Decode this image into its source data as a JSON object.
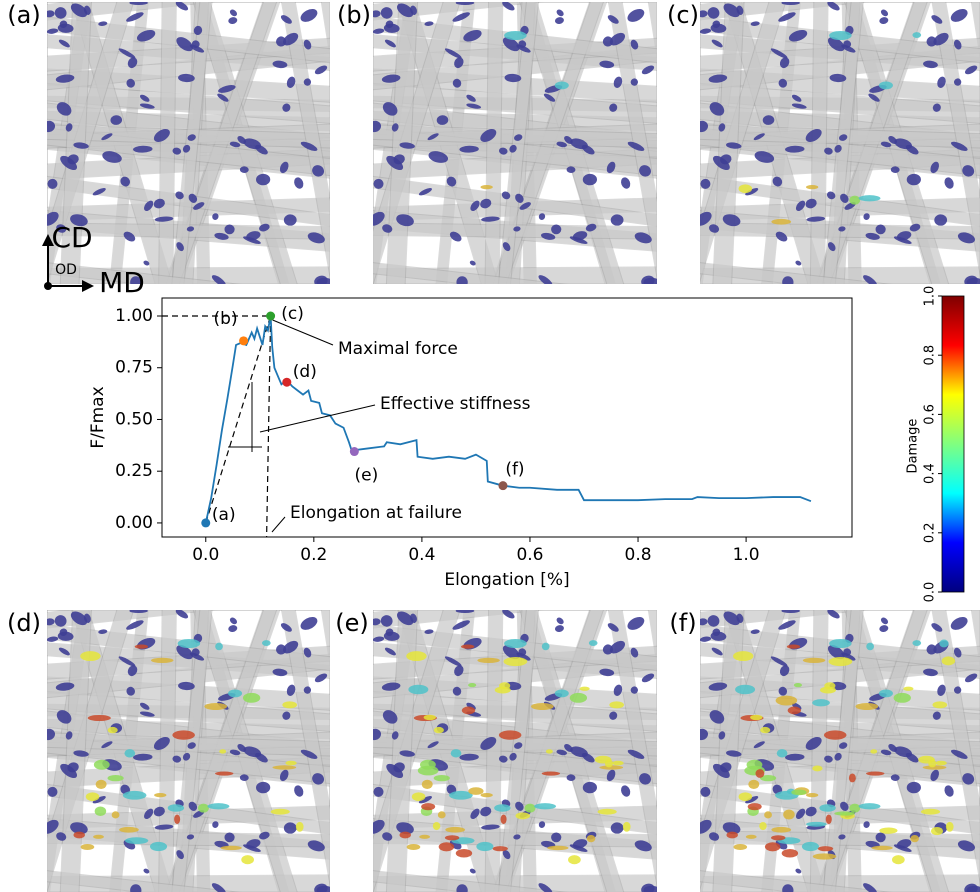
{
  "panels": [
    {
      "label": "(a)"
    },
    {
      "label": "(b)"
    },
    {
      "label": "(c)"
    },
    {
      "label": "(d)"
    },
    {
      "label": "(e)"
    },
    {
      "label": "(f)"
    }
  ],
  "axes_indicator": {
    "vertical": "CD",
    "out_of_plane": "OD",
    "horizontal": "MD"
  },
  "chart_data": {
    "type": "line",
    "xlabel": "Elongation [%]",
    "ylabel": "F/Fmax",
    "xlim": [
      -0.081,
      1.196
    ],
    "ylim": [
      -0.068,
      1.087
    ],
    "xticks": [
      {
        "value": 0,
        "label": "0.0"
      },
      {
        "value": 0.2,
        "label": "0.2"
      },
      {
        "value": 0.4,
        "label": "0.4"
      },
      {
        "value": 0.6,
        "label": "0.6"
      },
      {
        "value": 0.8,
        "label": "0.8"
      },
      {
        "value": 1.0,
        "label": "1.0"
      }
    ],
    "yticks": [
      {
        "value": 0,
        "label": "0.00"
      },
      {
        "value": 0.25,
        "label": "0.25"
      },
      {
        "value": 0.5,
        "label": "0.50"
      },
      {
        "value": 0.75,
        "label": "0.75"
      },
      {
        "value": 1.0,
        "label": "1.00"
      }
    ],
    "x": [
      0,
      0.01,
      0.02,
      0.03,
      0.04,
      0.05,
      0.056,
      0.065,
      0.075,
      0.085,
      0.09,
      0.095,
      0.1,
      0.105,
      0.11,
      0.115,
      0.12,
      0.123,
      0.127,
      0.135,
      0.14,
      0.15,
      0.16,
      0.17,
      0.18,
      0.19,
      0.195,
      0.21,
      0.215,
      0.23,
      0.24,
      0.255,
      0.265,
      0.27,
      0.3,
      0.33,
      0.335,
      0.36,
      0.39,
      0.392,
      0.42,
      0.45,
      0.48,
      0.5,
      0.52,
      0.522,
      0.55,
      0.58,
      0.6,
      0.65,
      0.69,
      0.7,
      0.75,
      0.8,
      0.85,
      0.9,
      0.91,
      0.95,
      1.0,
      1.05,
      1.1,
      1.12
    ],
    "series": [
      {
        "name": "F/Fmax",
        "color": "#1f77b4",
        "values": [
          0,
          0.12,
          0.28,
          0.45,
          0.6,
          0.76,
          0.86,
          0.87,
          0.86,
          0.92,
          0.89,
          0.94,
          0.9,
          0.86,
          0.95,
          0.93,
          1.0,
          0.85,
          0.75,
          0.7,
          0.67,
          0.69,
          0.66,
          0.64,
          0.62,
          0.64,
          0.59,
          0.58,
          0.53,
          0.52,
          0.48,
          0.46,
          0.39,
          0.35,
          0.36,
          0.37,
          0.39,
          0.38,
          0.4,
          0.32,
          0.31,
          0.32,
          0.31,
          0.33,
          0.3,
          0.2,
          0.18,
          0.17,
          0.17,
          0.16,
          0.16,
          0.11,
          0.11,
          0.11,
          0.115,
          0.115,
          0.125,
          0.12,
          0.12,
          0.125,
          0.125,
          0.105
        ]
      }
    ],
    "markers": {
      "labels": [
        "(a)",
        "(b)",
        "(c)",
        "(d)",
        "(e)",
        "(f)"
      ],
      "x": [
        0,
        0.07,
        0.12,
        0.15,
        0.275,
        0.55
      ],
      "values": [
        0,
        0.88,
        1.0,
        0.68,
        0.345,
        0.18
      ],
      "colors": [
        "#1f77b4",
        "#ff7f0e",
        "#2ca02c",
        "#d62728",
        "#9467bd",
        "#8c564b"
      ]
    },
    "annotations": [
      "Maximal force",
      "Effective stiffness",
      "Elongation at failure"
    ],
    "colorbar": {
      "label": "Damage",
      "lim": [
        0,
        1
      ],
      "ticks": [
        {
          "value": 0,
          "label": "0.0"
        },
        {
          "value": 0.2,
          "label": "0.2"
        },
        {
          "value": 0.4,
          "label": "0.4"
        },
        {
          "value": 0.6,
          "label": "0.6"
        },
        {
          "value": 0.8,
          "label": "0.8"
        },
        {
          "value": 1.0,
          "label": "1.0"
        }
      ],
      "colormap": [
        "#00007f",
        "#0000ff",
        "#00ffff",
        "#80ff80",
        "#ffff00",
        "#ff0000",
        "#7f0000"
      ]
    }
  }
}
